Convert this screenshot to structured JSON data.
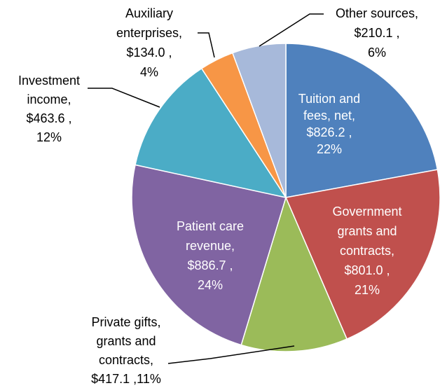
{
  "chart_data": {
    "type": "pie",
    "values": [
      826.2,
      801.0,
      417.1,
      886.7,
      463.6,
      134.0,
      210.1
    ],
    "label_lines": [
      [
        "Tuition and",
        "fees, net,",
        "$826.2 ,",
        "22%"
      ],
      [
        "Government",
        "grants and",
        "contracts,",
        "$801.0 ,",
        "21%"
      ],
      [
        "Private gifts,",
        "grants and",
        "contracts,",
        "$417.1 ,11%"
      ],
      [
        "Patient care",
        "revenue,",
        "$886.7 ,",
        "24%"
      ],
      [
        "Investment",
        "income,",
        "$463.6 ,",
        "12%"
      ],
      [
        "Auxiliary",
        "enterprises,",
        "$134.0 ,",
        "4%"
      ],
      [
        "Other sources,",
        "$210.1 ,",
        "6%"
      ]
    ],
    "colors": [
      "#4f81bd",
      "#c0504d",
      "#9bbb59",
      "#8064a2",
      "#4bacc6",
      "#f79646",
      "#a7b9da"
    ]
  }
}
